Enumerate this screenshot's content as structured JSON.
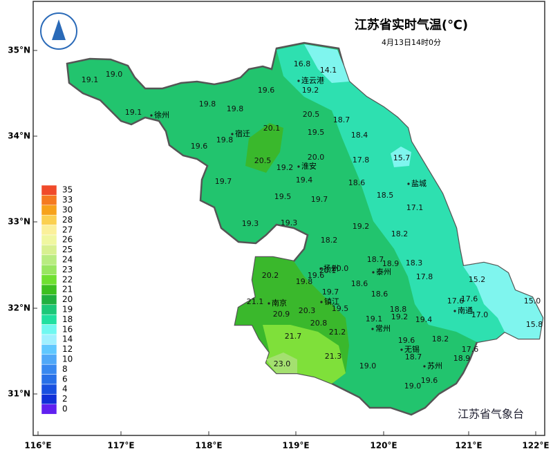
{
  "header": {
    "title": "江苏省实时气温(℃)",
    "subtitle": "4月13日14时0分"
  },
  "lat_labels": [
    "35°N",
    "34°N",
    "33°N",
    "32°N",
    "31°N"
  ],
  "lon_labels": [
    "116°E",
    "117°E",
    "118°E",
    "119°E",
    "120°E",
    "121°E",
    "122°E"
  ],
  "legend": [
    {
      "label": "35",
      "color": "#f04a2a"
    },
    {
      "label": "33",
      "color": "#f57a20"
    },
    {
      "label": "30",
      "color": "#f7a21a"
    },
    {
      "label": "28",
      "color": "#fbd050"
    },
    {
      "label": "27",
      "color": "#fbf09a"
    },
    {
      "label": "26",
      "color": "#f0f7a0"
    },
    {
      "label": "25",
      "color": "#d8f090"
    },
    {
      "label": "24",
      "color": "#b8ec80"
    },
    {
      "label": "23",
      "color": "#98e660"
    },
    {
      "label": "22",
      "color": "#6fe030"
    },
    {
      "label": "21",
      "color": "#3cc020"
    },
    {
      "label": "20",
      "color": "#20b040"
    },
    {
      "label": "19",
      "color": "#1cc878"
    },
    {
      "label": "18",
      "color": "#20e0a0"
    },
    {
      "label": "16",
      "color": "#70f8f0"
    },
    {
      "label": "14",
      "color": "#a0f0ff"
    },
    {
      "label": "12",
      "color": "#60c8ff"
    },
    {
      "label": "10",
      "color": "#50a8f8"
    },
    {
      "label": "8",
      "color": "#3888f0"
    },
    {
      "label": "6",
      "color": "#2870e8"
    },
    {
      "label": "4",
      "color": "#1850e0"
    },
    {
      "label": "2",
      "color": "#1030d8"
    },
    {
      "label": "0",
      "color": "#6020f0"
    }
  ],
  "cities": [
    "连云港",
    "徐州",
    "宿迁",
    "淮安",
    "盐城",
    "扬州",
    "泰州",
    "南京",
    "镇江",
    "南通",
    "常州",
    "无锡",
    "苏州"
  ],
  "stations": [
    "19.1",
    "19.0",
    "19.1",
    "19.8",
    "19.8",
    "19.6",
    "16.8",
    "14.1",
    "19.2",
    "20.5",
    "18.7",
    "19.5",
    "18.4",
    "20.1",
    "19.8",
    "19.6",
    "20.5",
    "19.2",
    "20.0",
    "17.8",
    "15.7",
    "19.4",
    "18.6",
    "19.7",
    "19.5",
    "19.7",
    "18.5",
    "17.1",
    "19.3",
    "19.3",
    "19.2",
    "18.2",
    "18.2",
    "18.7",
    "18.9",
    "18.3",
    "20.1",
    "20.0",
    "19.6",
    "20.2",
    "19.8",
    "17.8",
    "15.2",
    "18.6",
    "18.6",
    "19.7",
    "21.1",
    "17.6",
    "17.6",
    "15.0",
    "20.9",
    "20.3",
    "19.5",
    "18.8",
    "19.1",
    "19.2",
    "19.4",
    "17.0",
    "15.8",
    "20.8",
    "21.2",
    "21.7",
    "19.6",
    "18.2",
    "18.7",
    "17.6",
    "21.3",
    "18.9",
    "23.0",
    "19.0",
    "19.6",
    "19.0"
  ],
  "credit": "江苏省气象台"
}
